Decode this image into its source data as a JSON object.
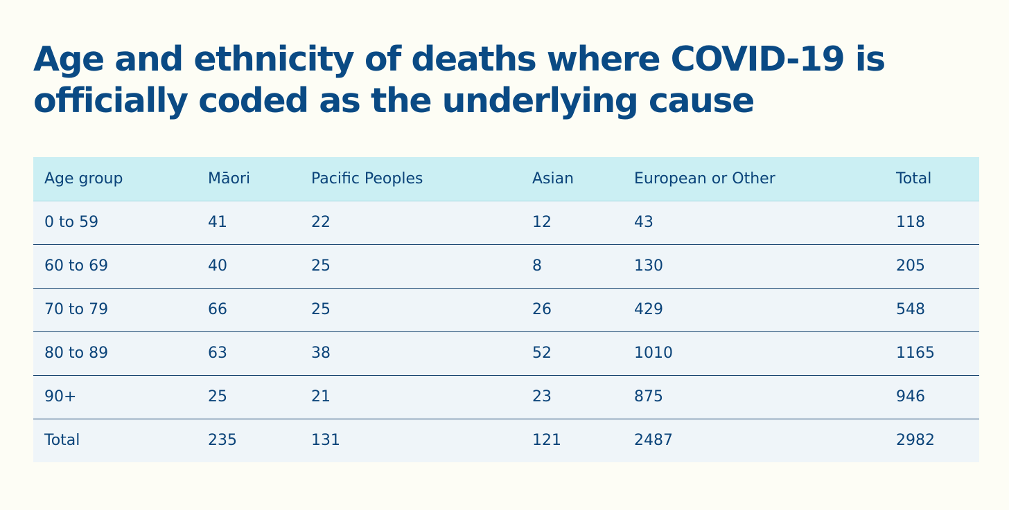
{
  "title": {
    "line1": "Age and ethnicity of deaths where COVID-19 is",
    "line2": "officially coded as the underlying cause"
  },
  "table": {
    "headers": [
      "Age group",
      "Māori",
      "Pacific Peoples",
      "Asian",
      "European or Other",
      "Total"
    ],
    "rows": [
      [
        "0 to 59",
        "41",
        "22",
        "12",
        "43",
        "118"
      ],
      [
        "60 to 69",
        "40",
        "25",
        "8",
        "130",
        "205"
      ],
      [
        "70 to 79",
        "66",
        "25",
        "26",
        "429",
        "548"
      ],
      [
        "80 to 89",
        "63",
        "38",
        "52",
        "1010",
        "1165"
      ],
      [
        "90+",
        "25",
        "21",
        "23",
        "875",
        "946"
      ]
    ],
    "total_row": [
      "Total",
      "235",
      "131",
      "121",
      "2487",
      "2982"
    ]
  },
  "colors": {
    "background": "#fdfdf5",
    "title": "#0a4a84",
    "header_bg": "#cbeff3",
    "row_bg": "#eff5f9",
    "text": "#0a4379",
    "row_divider": "#0f3e6b"
  }
}
